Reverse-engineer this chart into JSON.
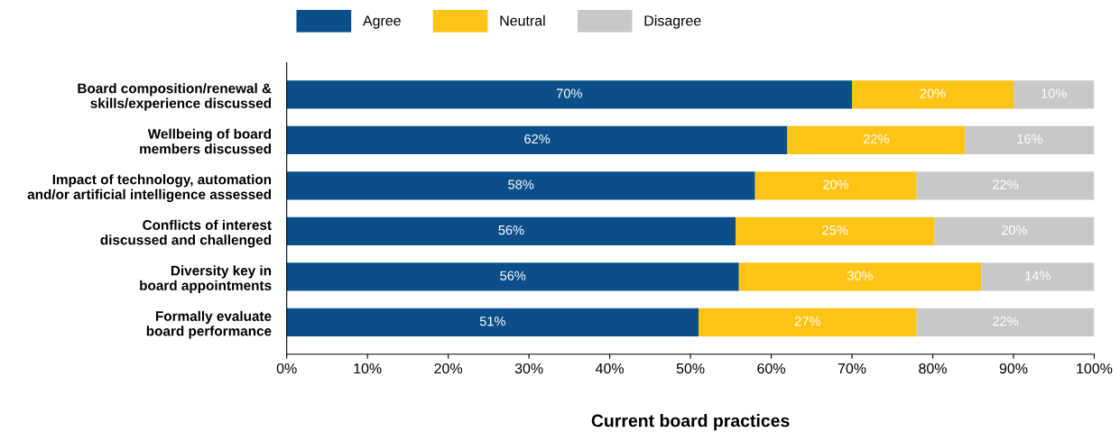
{
  "chart_data": {
    "type": "bar",
    "orientation": "horizontal",
    "stacked": true,
    "xlabel": "Current board practices",
    "categories": [
      "Board composition/renewal &\nskills/experience discussed",
      "Wellbeing of board\nmembers discussed",
      "Impact of technology, automation\nand/or artificial intelligence assessed",
      "Conflicts of interest\ndiscussed and challenged",
      "Diversity key in\nboard appointments",
      "Formally evaluate\nboard performance"
    ],
    "series": [
      {
        "name": "Agree",
        "color": "#0b4f8a",
        "values": [
          70,
          62,
          58,
          55.6,
          56,
          51
        ],
        "value_labels": [
          "70%",
          "62%",
          "58%",
          "56%",
          "56%",
          "51%"
        ]
      },
      {
        "name": "Neutral",
        "color": "#fdc315",
        "values": [
          20,
          22,
          20,
          24.6,
          30,
          27
        ],
        "value_labels": [
          "20%",
          "22%",
          "20%",
          "25%",
          "30%",
          "27%"
        ]
      },
      {
        "name": "Disagree",
        "color": "#c8c8c8",
        "values": [
          10,
          16,
          22,
          19.8,
          14,
          22
        ],
        "value_labels": [
          "10%",
          "16%",
          "22%",
          "20%",
          "14%",
          "22%"
        ]
      }
    ],
    "xlim": [
      0,
      100
    ],
    "xticks": [
      {
        "value": 0,
        "label": "0%"
      },
      {
        "value": 10,
        "label": "10%"
      },
      {
        "value": 20,
        "label": "20%"
      },
      {
        "value": 30,
        "label": "30%"
      },
      {
        "value": 40,
        "label": "40%"
      },
      {
        "value": 50,
        "label": "50%"
      },
      {
        "value": 60,
        "label": "60%"
      },
      {
        "value": 70,
        "label": "70%"
      },
      {
        "value": 80,
        "label": "80%"
      },
      {
        "value": 90,
        "label": "90%"
      },
      {
        "value": 100,
        "label": "100%"
      }
    ],
    "legend": "top left",
    "grid": false
  }
}
